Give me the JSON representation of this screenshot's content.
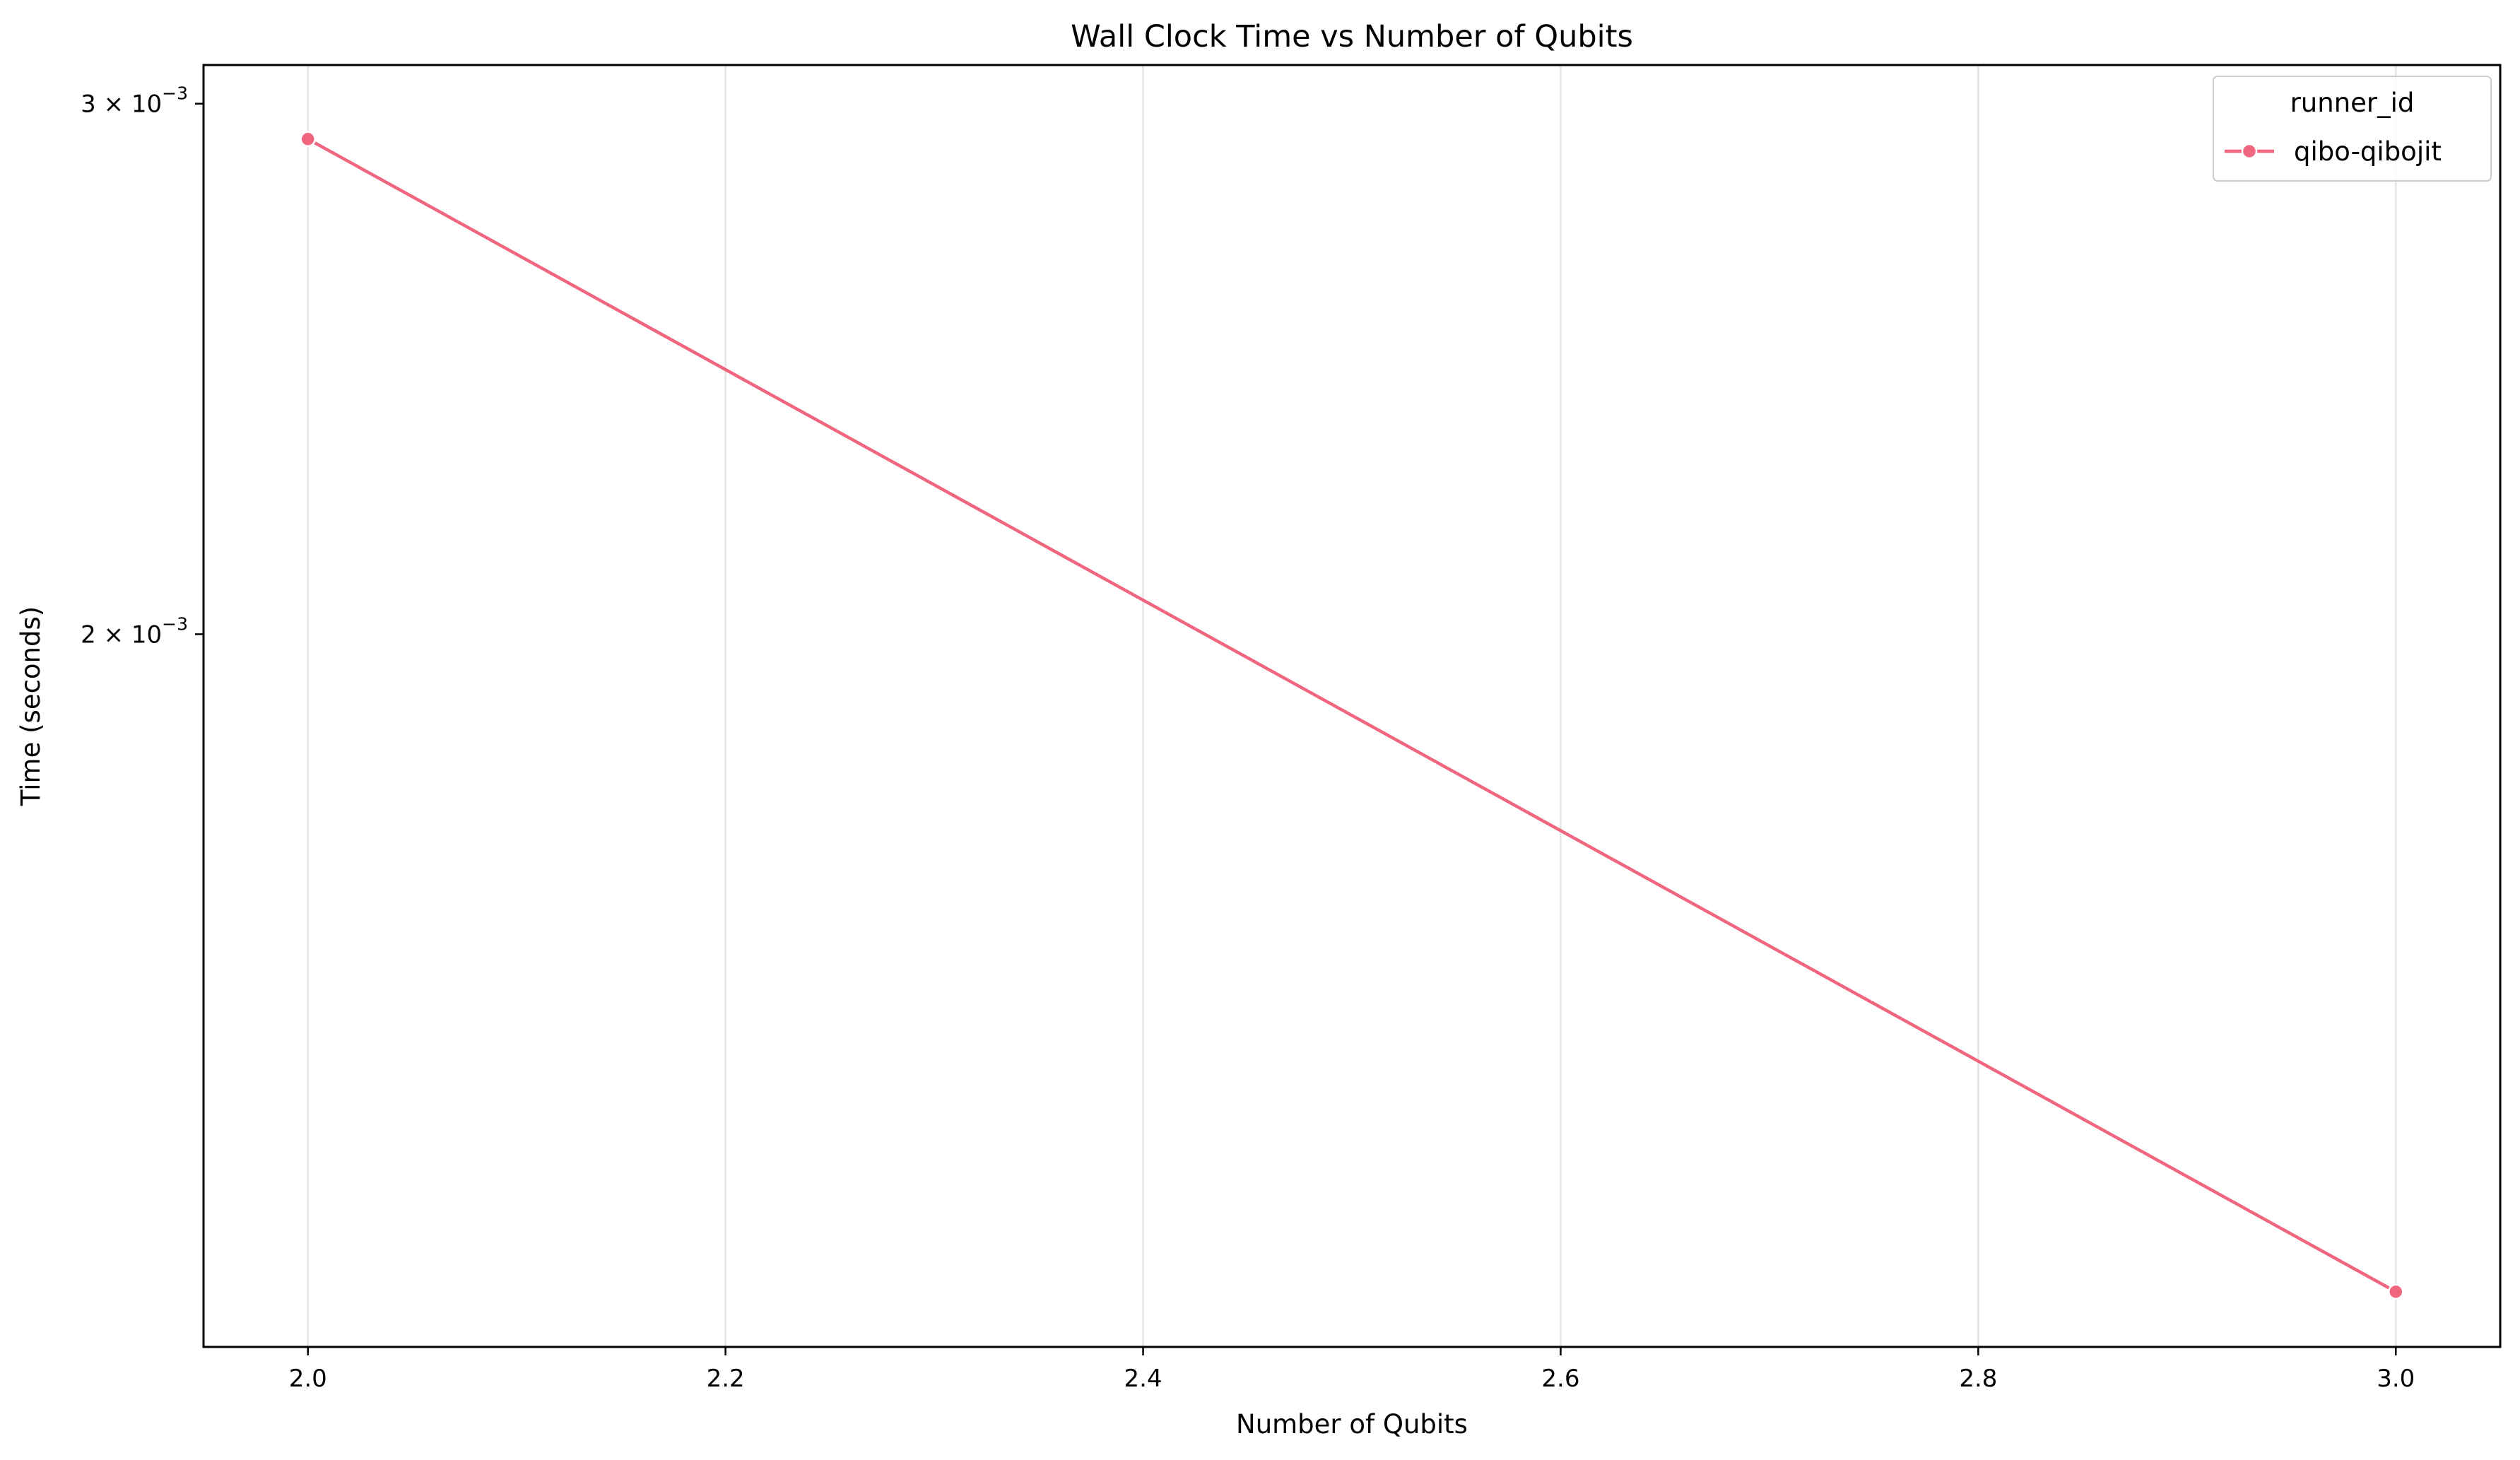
{
  "chart_data": {
    "type": "line",
    "title": "Wall Clock Time vs Number of Qubits",
    "xlabel": "Number of Qubits",
    "ylabel": "Time (seconds)",
    "xlim": [
      1.95,
      3.05
    ],
    "ylim": [
      0.00116,
      0.00309
    ],
    "yscale": "log",
    "grid": "vertical",
    "x_ticks": [
      {
        "value": 2.0,
        "label": "2.0"
      },
      {
        "value": 2.2,
        "label": "2.2"
      },
      {
        "value": 2.4,
        "label": "2.4"
      },
      {
        "value": 2.6,
        "label": "2.6"
      },
      {
        "value": 2.8,
        "label": "2.8"
      },
      {
        "value": 3.0,
        "label": "3.0"
      }
    ],
    "y_ticks": [
      {
        "value": 0.003,
        "mantissa": "3",
        "exponent": "−3"
      },
      {
        "value": 0.002,
        "mantissa": "2",
        "exponent": "−3"
      }
    ],
    "legend": {
      "title": "runner_id",
      "position": "top-right"
    },
    "series": [
      {
        "name": "qibo-qibojit",
        "color": "#f0667f",
        "marker": "circle",
        "x": [
          2.0,
          3.0
        ],
        "y": [
          0.00292,
          0.00121
        ]
      }
    ]
  }
}
